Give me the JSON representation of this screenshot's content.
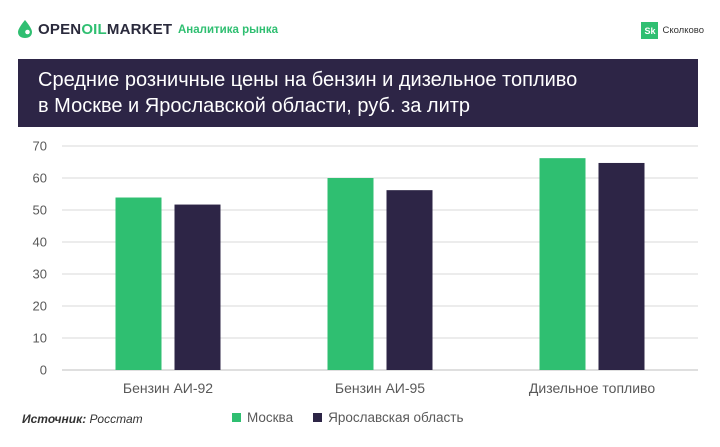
{
  "header": {
    "logo_part1": "OPEN",
    "logo_part2": "OIL",
    "logo_part3": "MARKET",
    "tagline": "Аналитика рынка",
    "partner_mark": "Sk",
    "partner_name": "Сколково"
  },
  "title": {
    "line1": "Средние розничные цены на бензин и дизельное топливо",
    "line2": "в Москве и Ярославской области, руб. за литр"
  },
  "source": {
    "label": "Источник:",
    "value": "Росстат"
  },
  "colors": {
    "brand_green": "#2fbf71",
    "title_bg": "#2d2546",
    "series_moscow": "#2fbf71",
    "series_yaroslavl": "#2d2546"
  },
  "chart_data": {
    "type": "bar",
    "categories": [
      "Бензин АИ-92",
      "Бензин АИ-95",
      "Дизельное топливо"
    ],
    "series": [
      {
        "name": "Москва",
        "color": "#2fbf71",
        "values": [
          53.9,
          60.0,
          66.2
        ]
      },
      {
        "name": "Ярославская область",
        "color": "#2d2546",
        "values": [
          51.7,
          56.2,
          64.7
        ]
      }
    ],
    "ylim": [
      0,
      70
    ],
    "yticks": [
      0,
      10,
      20,
      30,
      40,
      50,
      60,
      70
    ],
    "grid": true,
    "legend_position": "bottom"
  }
}
